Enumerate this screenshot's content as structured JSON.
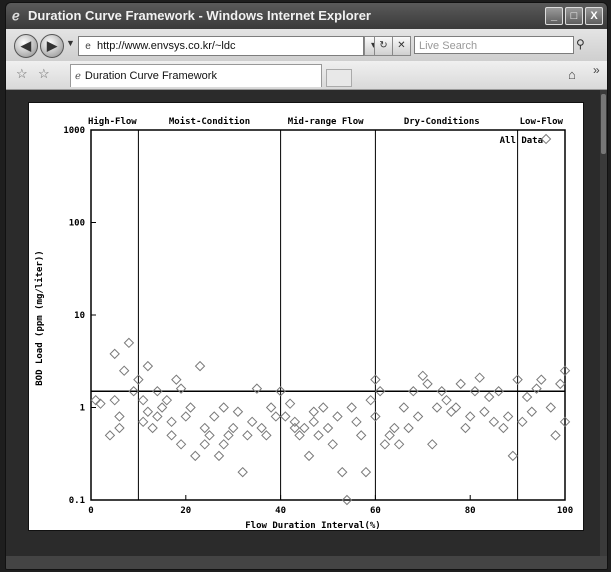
{
  "window": {
    "title": "Duration Curve Framework - Windows Internet Explorer",
    "title_icon": "ie-icon"
  },
  "window_buttons": {
    "minimize": "_",
    "maximize": "□",
    "close": "X"
  },
  "address_bar": {
    "url": "http://www.envsys.co.kr/~ldc",
    "search_placeholder": "Live Search"
  },
  "tab": {
    "label": "Duration Curve Framework"
  },
  "chart_data": {
    "type": "scatter",
    "xlabel": "Flow Duration Interval(%)",
    "ylabel": "BOD Load (ppm (mg/liter))",
    "xlim": [
      0,
      100
    ],
    "ylim": [
      0.1,
      1000
    ],
    "yscale": "log",
    "xticks": [
      0,
      20,
      40,
      60,
      80,
      100
    ],
    "yticks": [
      0.1,
      1,
      10,
      100,
      1000
    ],
    "ytick_labels": [
      "0.1",
      "1",
      "10",
      "100",
      "1000"
    ],
    "zone_boundaries": [
      10,
      40,
      60,
      90
    ],
    "zones": [
      {
        "label": "High-Flow",
        "center": 4.5
      },
      {
        "label": "Moist-Condition",
        "center": 25
      },
      {
        "label": "Mid-range Flow",
        "center": 49.5
      },
      {
        "label": "Dry-Conditions",
        "center": 74
      },
      {
        "label": "Low-Flow",
        "center": 95
      }
    ],
    "reference_line": 1.5,
    "legend": {
      "label": "All Data",
      "placement": "top-right"
    },
    "grid": false,
    "series": [
      {
        "marker": "diamond",
        "x": [
          1,
          2,
          4,
          5,
          5,
          6,
          6,
          7,
          8,
          9,
          10,
          11,
          11,
          12,
          12,
          13,
          14,
          14,
          15,
          16,
          17,
          17,
          18,
          19,
          19,
          20,
          21,
          22,
          23,
          24,
          24,
          25,
          26,
          27,
          28,
          28,
          29,
          30,
          31,
          32,
          33,
          34,
          35,
          36,
          37,
          38,
          39,
          40,
          41,
          42,
          43,
          43,
          44,
          45,
          46,
          47,
          47,
          48,
          49,
          50,
          51,
          52,
          53,
          54,
          55,
          56,
          57,
          58,
          59,
          60,
          60,
          61,
          62,
          63,
          64,
          65,
          66,
          67,
          68,
          69,
          70,
          71,
          72,
          73,
          74,
          75,
          76,
          77,
          78,
          79,
          80,
          81,
          82,
          83,
          84,
          85,
          86,
          87,
          88,
          89,
          90,
          91,
          92,
          93,
          94,
          95,
          96,
          97,
          98,
          99,
          100,
          100
        ],
        "y": [
          1.2,
          1.1,
          0.5,
          3.8,
          1.2,
          0.8,
          0.6,
          2.5,
          5.0,
          1.5,
          2.0,
          1.2,
          0.7,
          2.8,
          0.9,
          0.6,
          1.5,
          0.8,
          1.0,
          1.2,
          0.5,
          0.7,
          2.0,
          1.6,
          0.4,
          0.8,
          1.0,
          0.3,
          2.8,
          0.6,
          0.4,
          0.5,
          0.8,
          0.3,
          1.0,
          0.4,
          0.5,
          0.6,
          0.9,
          0.2,
          0.5,
          0.7,
          1.6,
          0.6,
          0.5,
          1.0,
          0.8,
          1.5,
          0.8,
          1.1,
          0.6,
          0.7,
          0.5,
          0.6,
          0.3,
          0.9,
          0.7,
          0.5,
          1.0,
          0.6,
          0.4,
          0.8,
          0.2,
          0.1,
          1.0,
          0.7,
          0.5,
          0.2,
          1.2,
          2.0,
          0.8,
          1.5,
          0.4,
          0.5,
          0.6,
          0.4,
          1.0,
          0.6,
          1.5,
          0.8,
          2.2,
          1.8,
          0.4,
          1.0,
          1.5,
          1.2,
          0.9,
          1.0,
          1.8,
          0.6,
          0.8,
          1.5,
          2.1,
          0.9,
          1.3,
          0.7,
          1.5,
          0.6,
          0.8,
          0.3,
          2.0,
          0.7,
          1.3,
          0.9,
          1.6,
          2.0,
          800,
          1.0,
          0.5,
          1.8,
          0.7,
          2.5
        ]
      }
    ]
  }
}
